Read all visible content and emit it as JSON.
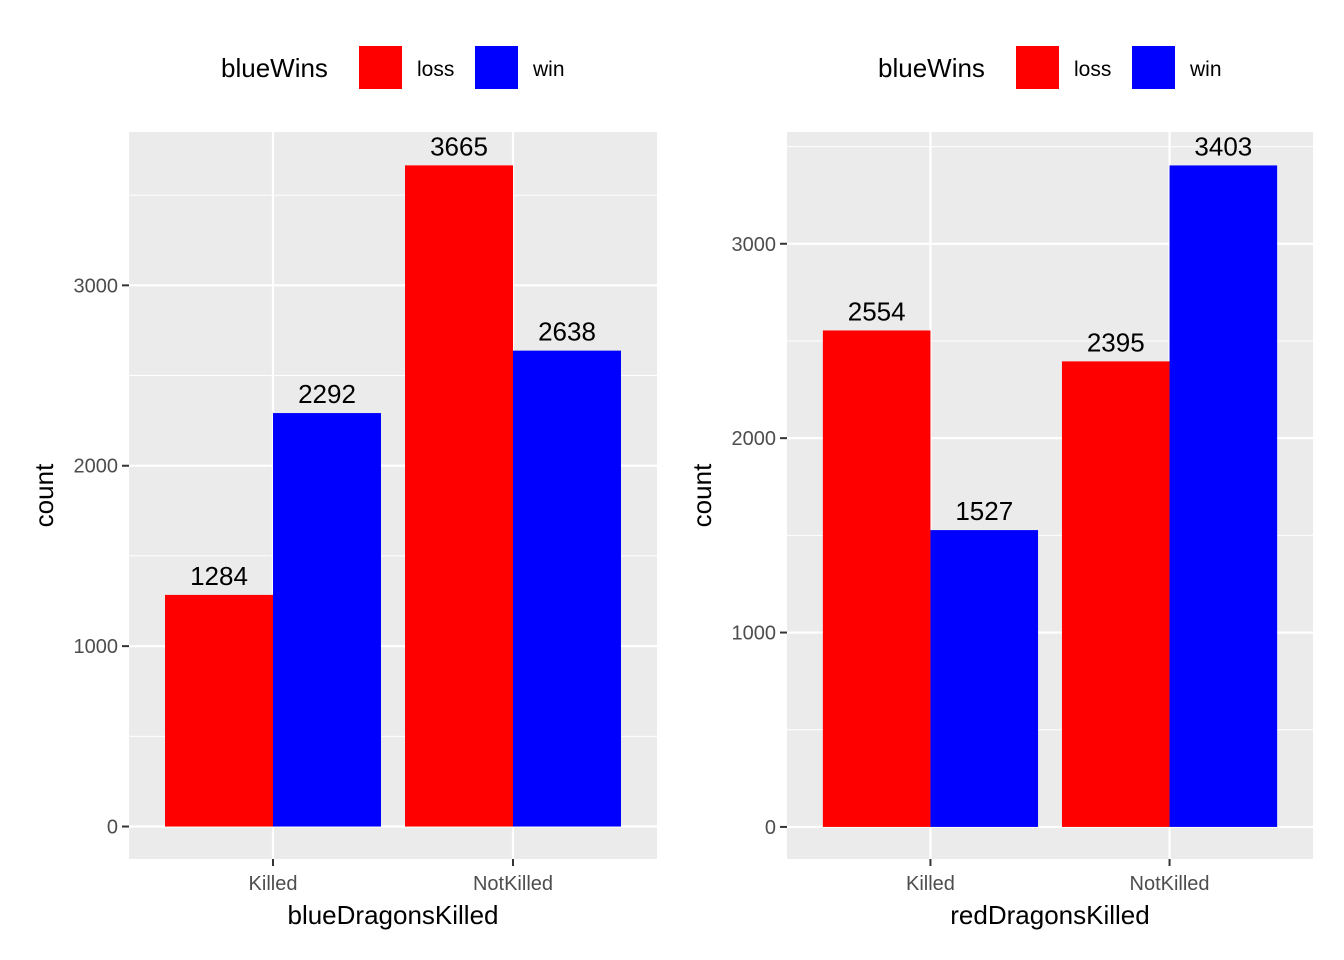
{
  "colors": {
    "panel_bg": "#ebebeb",
    "grid": "#ffffff",
    "tick": "#333333",
    "tick_text": "#4d4d4d"
  },
  "chart_data": [
    {
      "type": "bar",
      "xlabel": "blueDragonsKilled",
      "ylabel": "count",
      "categories": [
        "Killed",
        "NotKilled"
      ],
      "ylim": [
        -180,
        3850
      ],
      "yticks": [
        0,
        1000,
        2000,
        3000
      ],
      "grid": true,
      "legend": {
        "title": "blueWins",
        "position": "top",
        "entries": [
          {
            "label": "loss",
            "color": "#ff0000"
          },
          {
            "label": "win",
            "color": "#0000ff"
          }
        ]
      },
      "series": [
        {
          "name": "loss",
          "color": "#ff0000",
          "values": [
            1284,
            3665
          ]
        },
        {
          "name": "win",
          "color": "#0000ff",
          "values": [
            2292,
            2638
          ]
        }
      ]
    },
    {
      "type": "bar",
      "xlabel": "redDragonsKilled",
      "ylabel": "count",
      "categories": [
        "Killed",
        "NotKilled"
      ],
      "ylim": [
        -165,
        3575
      ],
      "yticks": [
        0,
        1000,
        2000,
        3000
      ],
      "grid": true,
      "legend": {
        "title": "blueWins",
        "position": "top",
        "entries": [
          {
            "label": "loss",
            "color": "#ff0000"
          },
          {
            "label": "win",
            "color": "#0000ff"
          }
        ]
      },
      "series": [
        {
          "name": "loss",
          "color": "#ff0000",
          "values": [
            2554,
            2395
          ]
        },
        {
          "name": "win",
          "color": "#0000ff",
          "values": [
            1527,
            3403
          ]
        }
      ]
    }
  ]
}
